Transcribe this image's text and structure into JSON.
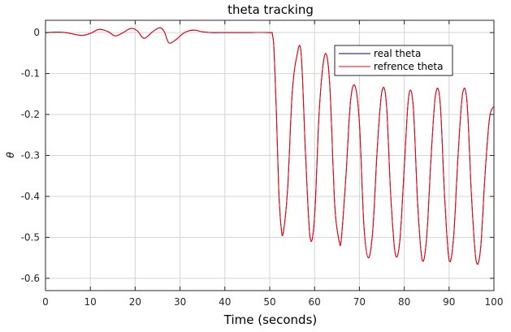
{
  "chart_data": {
    "type": "line",
    "title": "theta tracking",
    "xlabel": "Time (seconds)",
    "ylabel": "θ",
    "xlim": [
      0,
      100
    ],
    "ylim": [
      -0.63,
      0.03
    ],
    "xticks": [
      0,
      10,
      20,
      30,
      40,
      50,
      60,
      70,
      80,
      90,
      100
    ],
    "xtick_labels": [
      "0",
      "10",
      "20",
      "30",
      "40",
      "50",
      "60",
      "70",
      "80",
      "90",
      "100"
    ],
    "yticks": [
      0,
      -0.1,
      -0.2,
      -0.3,
      -0.4,
      -0.5,
      -0.6
    ],
    "ytick_labels": [
      "0",
      "-0.1",
      "-0.2",
      "-0.3",
      "-0.4",
      "-0.5",
      "-0.6"
    ],
    "grid": true,
    "legend_position": "top-right",
    "series": [
      {
        "name": "real theta",
        "color": "#00008b",
        "x": [
          0,
          3,
          5,
          8,
          10,
          12,
          14,
          15.5,
          17,
          19,
          20.5,
          22,
          24,
          25.5,
          26.5,
          27.5,
          29,
          31,
          33,
          35,
          37,
          40,
          45,
          50,
          50.6,
          51,
          51.5,
          52,
          52.5,
          53,
          54,
          55,
          56,
          57,
          58,
          59,
          60,
          61,
          62,
          62.8,
          63.5,
          64.5,
          65.5,
          66,
          67,
          68,
          69,
          70,
          71,
          72,
          73,
          74,
          75,
          76,
          77,
          78,
          79,
          80,
          81,
          82,
          83,
          84,
          85,
          86,
          87,
          88,
          89,
          90,
          91,
          92,
          93,
          94,
          95,
          96,
          97,
          98,
          99,
          100
        ],
        "values": [
          0,
          0.001,
          -0.001,
          -0.007,
          -0.002,
          0.008,
          0.002,
          -0.008,
          -0.002,
          0.01,
          0.004,
          -0.014,
          0.003,
          0.012,
          0.002,
          -0.025,
          -0.018,
          0,
          0.006,
          0.002,
          0,
          0,
          0,
          0,
          -0.005,
          -0.05,
          -0.2,
          -0.38,
          -0.47,
          -0.49,
          -0.38,
          -0.15,
          -0.06,
          -0.05,
          -0.3,
          -0.5,
          -0.45,
          -0.2,
          -0.07,
          -0.06,
          -0.15,
          -0.42,
          -0.51,
          -0.5,
          -0.35,
          -0.17,
          -0.13,
          -0.22,
          -0.47,
          -0.55,
          -0.48,
          -0.28,
          -0.145,
          -0.17,
          -0.4,
          -0.54,
          -0.51,
          -0.33,
          -0.155,
          -0.18,
          -0.42,
          -0.555,
          -0.5,
          -0.3,
          -0.15,
          -0.17,
          -0.4,
          -0.555,
          -0.5,
          -0.3,
          -0.15,
          -0.17,
          -0.4,
          -0.555,
          -0.53,
          -0.35,
          -0.21,
          -0.18
        ]
      },
      {
        "name": "refrence theta",
        "color": "#ff0000",
        "x": [
          0,
          3,
          5,
          8,
          10,
          12,
          14,
          15.5,
          17,
          19,
          20.5,
          22,
          24,
          25.5,
          26.5,
          27.5,
          29,
          31,
          33,
          35,
          37,
          40,
          45,
          50,
          50.6,
          51,
          51.5,
          52,
          52.5,
          53,
          54,
          55,
          56,
          57,
          58,
          59,
          60,
          61,
          62,
          62.8,
          63.5,
          64.5,
          65.5,
          66,
          67,
          68,
          69,
          70,
          71,
          72,
          73,
          74,
          75,
          76,
          77,
          78,
          79,
          80,
          81,
          82,
          83,
          84,
          85,
          86,
          87,
          88,
          89,
          90,
          91,
          92,
          93,
          94,
          95,
          96,
          97,
          98,
          99,
          100
        ],
        "values": [
          0,
          0.001,
          -0.001,
          -0.007,
          -0.002,
          0.008,
          0.002,
          -0.008,
          -0.002,
          0.01,
          0.004,
          -0.014,
          0.003,
          0.012,
          0.002,
          -0.025,
          -0.018,
          0,
          0.006,
          0.002,
          0,
          0,
          0,
          0,
          -0.005,
          -0.05,
          -0.2,
          -0.38,
          -0.47,
          -0.49,
          -0.38,
          -0.15,
          -0.06,
          -0.05,
          -0.3,
          -0.5,
          -0.45,
          -0.2,
          -0.07,
          -0.06,
          -0.15,
          -0.42,
          -0.51,
          -0.5,
          -0.35,
          -0.17,
          -0.13,
          -0.22,
          -0.47,
          -0.55,
          -0.48,
          -0.28,
          -0.145,
          -0.17,
          -0.4,
          -0.54,
          -0.51,
          -0.33,
          -0.155,
          -0.18,
          -0.42,
          -0.555,
          -0.5,
          -0.3,
          -0.15,
          -0.17,
          -0.4,
          -0.555,
          -0.5,
          -0.3,
          -0.15,
          -0.17,
          -0.4,
          -0.555,
          -0.53,
          -0.35,
          -0.21,
          -0.18
        ]
      }
    ]
  }
}
